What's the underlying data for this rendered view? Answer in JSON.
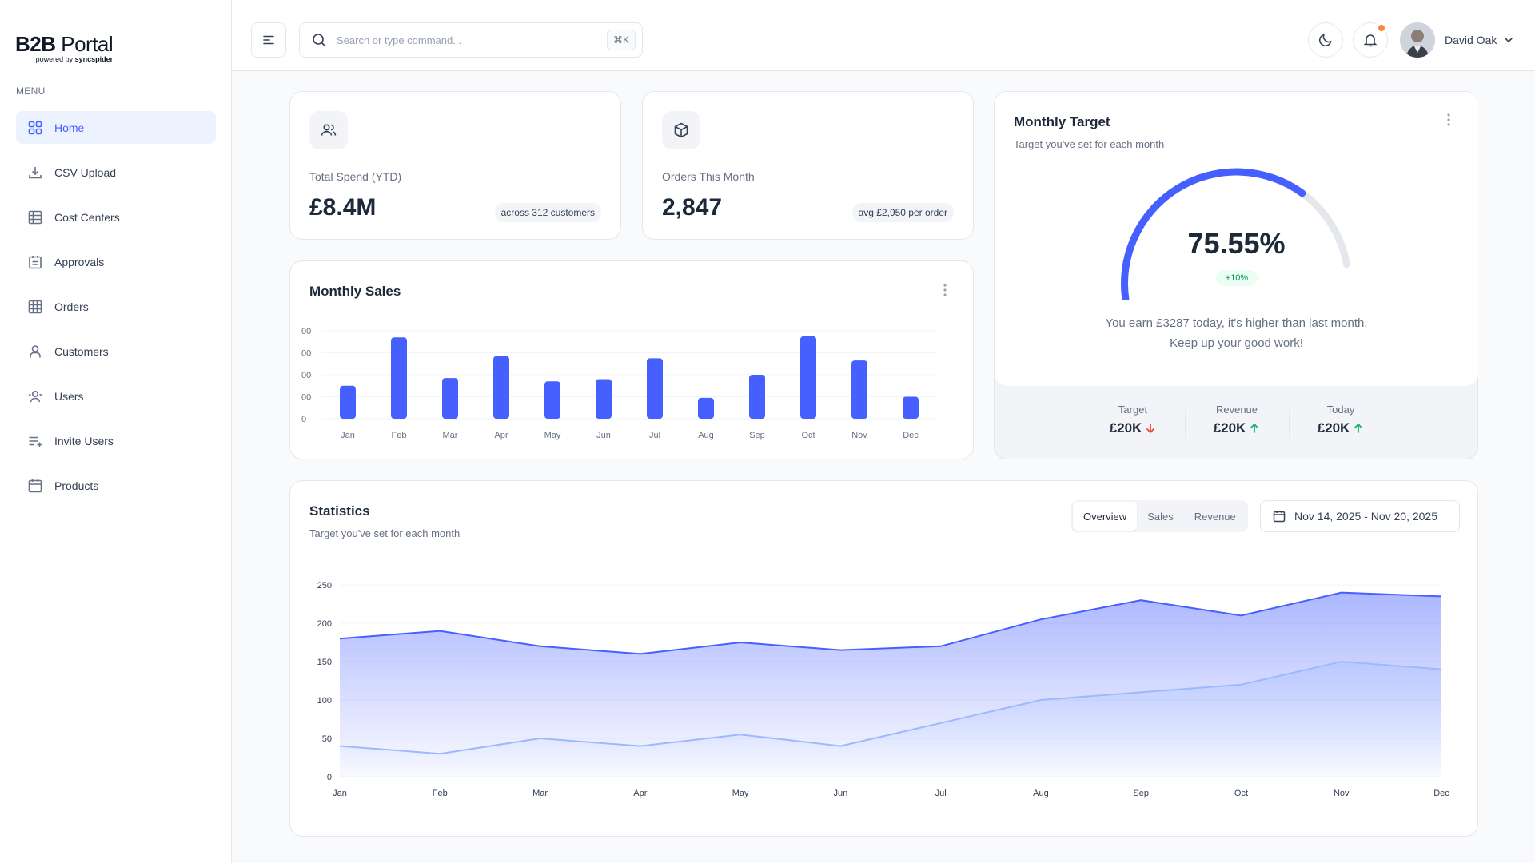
{
  "brand": {
    "name_bold": "B2B",
    "name_rest": " Portal",
    "powered_prefix": "powered by ",
    "powered_name": "syncspider"
  },
  "sidebar": {
    "menu_label": "MENU",
    "items": [
      {
        "label": "Home",
        "icon": "grid-icon"
      },
      {
        "label": "CSV Upload",
        "icon": "upload-icon"
      },
      {
        "label": "Cost Centers",
        "icon": "table-icon"
      },
      {
        "label": "Approvals",
        "icon": "clipboard-icon"
      },
      {
        "label": "Orders",
        "icon": "table-icon"
      },
      {
        "label": "Customers",
        "icon": "user-icon"
      },
      {
        "label": "Users",
        "icon": "users-icon"
      },
      {
        "label": "Invite Users",
        "icon": "list-add-icon"
      },
      {
        "label": "Products",
        "icon": "calendar-icon"
      }
    ]
  },
  "header": {
    "search_placeholder": "Search or type command...",
    "search_shortcut": "⌘K",
    "user_name": "David Oak"
  },
  "metrics": [
    {
      "label": "Total Spend (YTD)",
      "value": "£8.4M",
      "badge": "across 312 customers",
      "icon": "users-icon"
    },
    {
      "label": "Orders This Month",
      "value": "2,847",
      "badge": "avg £2,950 per order",
      "icon": "box-icon"
    }
  ],
  "monthly_sales": {
    "title": "Monthly Sales",
    "chart_data": {
      "type": "bar",
      "categories": [
        "Jan",
        "Feb",
        "Mar",
        "Apr",
        "May",
        "Jun",
        "Jul",
        "Aug",
        "Sep",
        "Oct",
        "Nov",
        "Dec"
      ],
      "values": [
        150,
        370,
        185,
        285,
        170,
        180,
        275,
        95,
        200,
        375,
        265,
        100
      ],
      "y_tick_labels": [
        "0",
        "00",
        "00",
        "00",
        "00"
      ],
      "ylim": [
        0,
        400
      ],
      "grid": true
    }
  },
  "monthly_target": {
    "title": "Monthly Target",
    "subtitle": "Target you've set for each month",
    "percent_value": 75.55,
    "percent_label": "75.55%",
    "change_badge": "+10%",
    "message_line1": "You earn £3287 today, it's higher than last month.",
    "message_line2": "Keep up your good work!",
    "stats": [
      {
        "label": "Target",
        "value": "£20K",
        "trend": "down"
      },
      {
        "label": "Revenue",
        "value": "£20K",
        "trend": "up"
      },
      {
        "label": "Today",
        "value": "£20K",
        "trend": "up"
      }
    ],
    "colors": {
      "gauge": "#465fff",
      "track": "#e4e7ec",
      "up": "#12b76a",
      "down": "#f04438"
    }
  },
  "statistics": {
    "title": "Statistics",
    "subtitle": "Target you've set for each month",
    "tabs": [
      "Overview",
      "Sales",
      "Revenue"
    ],
    "active_tab": "Overview",
    "date_range": "Nov 14, 2025 - Nov 20, 2025",
    "chart_data": {
      "type": "area",
      "x": [
        "Jan",
        "Feb",
        "Mar",
        "Apr",
        "May",
        "Jun",
        "Jul",
        "Aug",
        "Sep",
        "Oct",
        "Nov",
        "Dec"
      ],
      "series": [
        {
          "values": [
            180,
            190,
            170,
            160,
            175,
            165,
            170,
            205,
            230,
            210,
            240,
            235
          ],
          "color": "#465fff"
        },
        {
          "values": [
            40,
            30,
            50,
            40,
            55,
            40,
            70,
            100,
            110,
            120,
            150,
            140
          ],
          "color": "#9cb9ff"
        }
      ],
      "y_ticks": [
        0,
        50,
        100,
        150,
        200,
        250
      ],
      "ylim": [
        0,
        250
      ],
      "grid": true
    }
  },
  "colors": {
    "accent": "#465fff",
    "text": "#1d2939",
    "muted": "#667085",
    "border": "#e4e7ec"
  }
}
